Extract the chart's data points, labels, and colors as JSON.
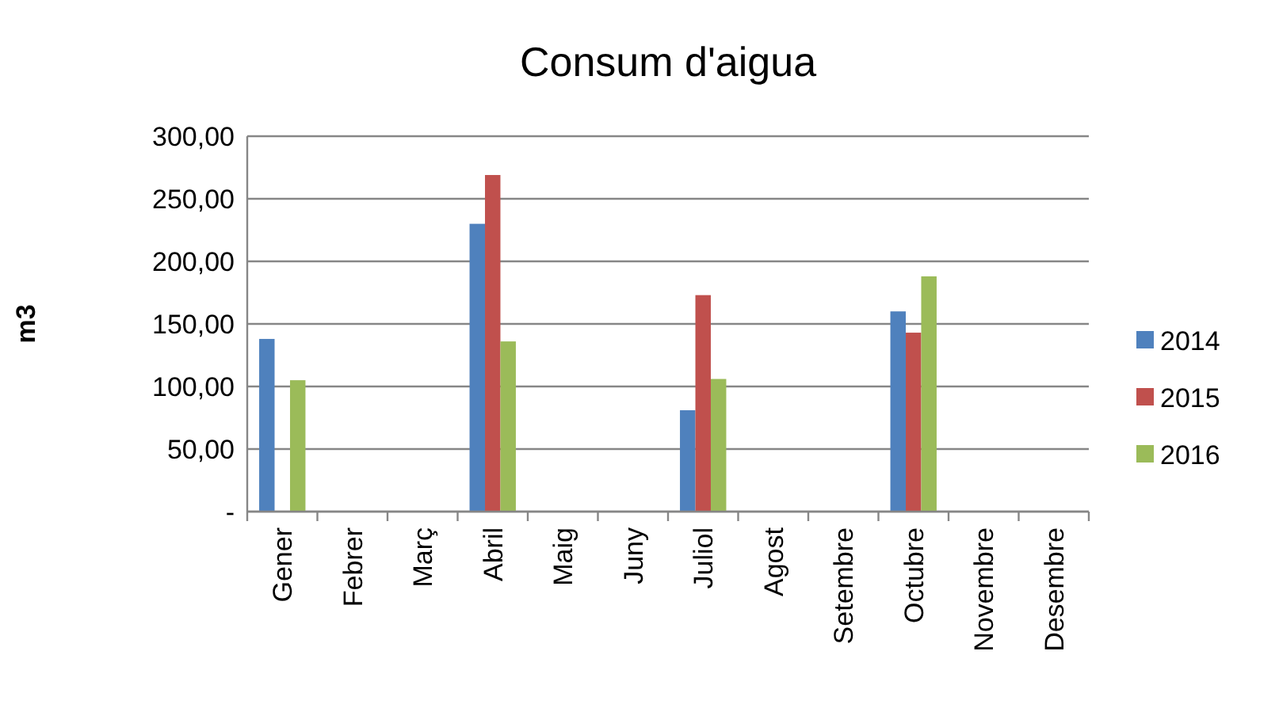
{
  "chart_data": {
    "type": "bar",
    "title": "Consum d'aigua",
    "ylabel": "m3",
    "categories": [
      "Gener",
      "Febrer",
      "Març",
      "Abril",
      "Maig",
      "Juny",
      "Juliol",
      "Agost",
      "Setembre",
      "Octubre",
      "Novembre",
      "Desembre"
    ],
    "series": [
      {
        "name": "2014",
        "color": "#4f81bd",
        "values": [
          138,
          null,
          null,
          230,
          null,
          null,
          81,
          null,
          null,
          160,
          null,
          null
        ]
      },
      {
        "name": "2015",
        "color": "#c0504d",
        "values": [
          null,
          null,
          null,
          269,
          null,
          null,
          173,
          null,
          null,
          143,
          null,
          null
        ]
      },
      {
        "name": "2016",
        "color": "#9bbb59",
        "values": [
          105,
          null,
          null,
          136,
          null,
          null,
          106,
          null,
          null,
          188,
          null,
          null
        ]
      }
    ],
    "ylim": [
      0,
      300
    ],
    "yticks": [
      {
        "value": 0,
        "label": "-"
      },
      {
        "value": 50,
        "label": "50,00"
      },
      {
        "value": 100,
        "label": "100,00"
      },
      {
        "value": 150,
        "label": "150,00"
      },
      {
        "value": 200,
        "label": "200,00"
      },
      {
        "value": 250,
        "label": "250,00"
      },
      {
        "value": 300,
        "label": "300,00"
      }
    ],
    "grid": "y",
    "legend": "right"
  }
}
